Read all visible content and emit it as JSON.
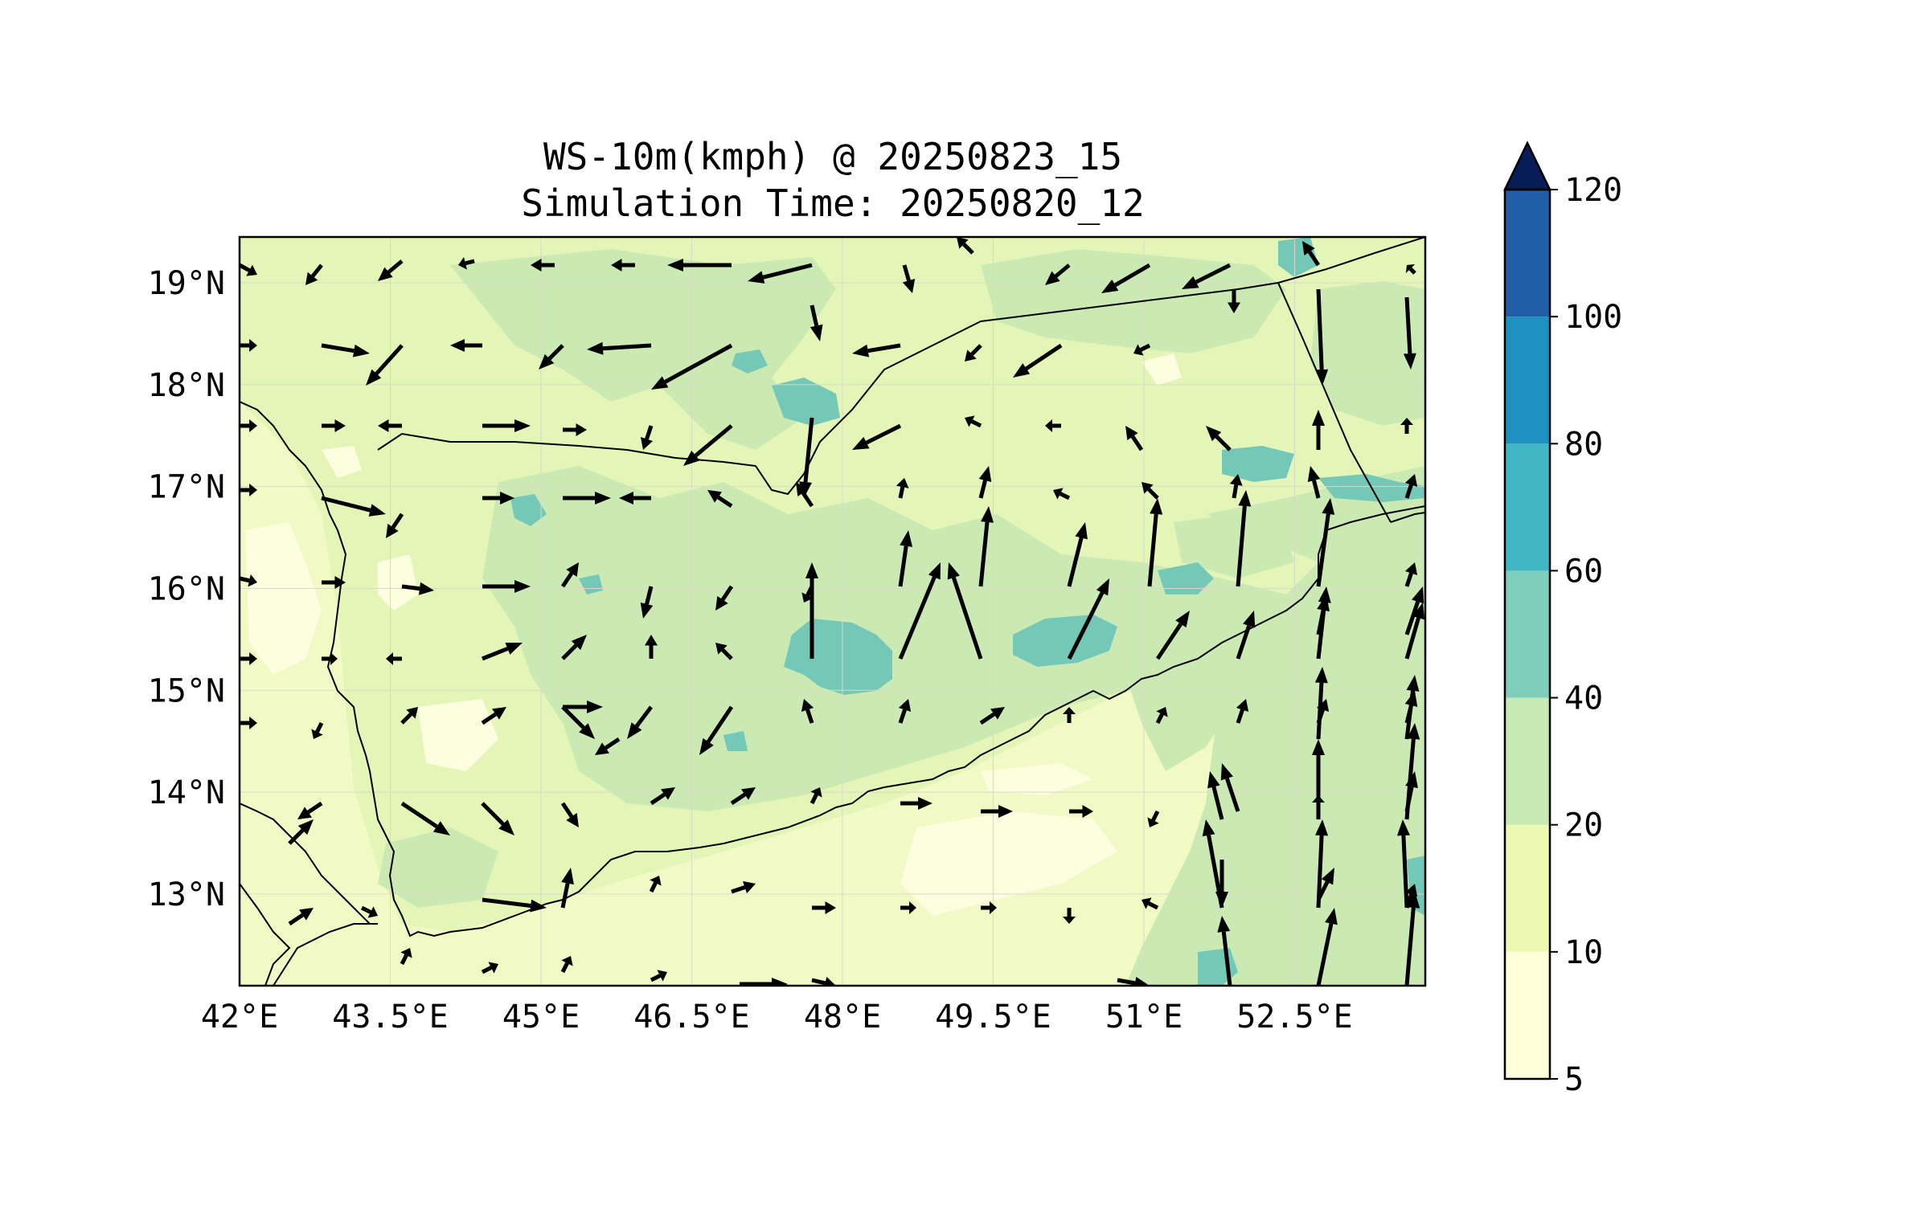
{
  "title": {
    "line1": "WS-10m(kmph) @ 20250823_15",
    "line2": "Simulation Time: 20250820_12"
  },
  "map": {
    "lon_range": [
      42.0,
      53.8
    ],
    "lat_range": [
      12.1,
      19.45
    ],
    "x_ticks": [
      "42°E",
      "43.5°E",
      "45°E",
      "46.5°E",
      "48°E",
      "49.5°E",
      "51°E",
      "52.5°E"
    ],
    "y_ticks": [
      "19°N",
      "18°N",
      "17°N",
      "16°N",
      "15°N",
      "14°N",
      "13°N"
    ],
    "gridlines": true,
    "land_base_color": "#ddf2b6",
    "sea_base_color": "#f3fbc5"
  },
  "colorbar": {
    "levels": [
      "5",
      "10",
      "20",
      "40",
      "60",
      "80",
      "100",
      "120"
    ],
    "colors": [
      "#ffffd9",
      "#edf8b1",
      "#c7e9b4",
      "#7fcdbb",
      "#41b6c4",
      "#1d91c0",
      "#225ea8",
      "#253494"
    ],
    "extend_color": "#081d58",
    "extend": "max"
  }
}
